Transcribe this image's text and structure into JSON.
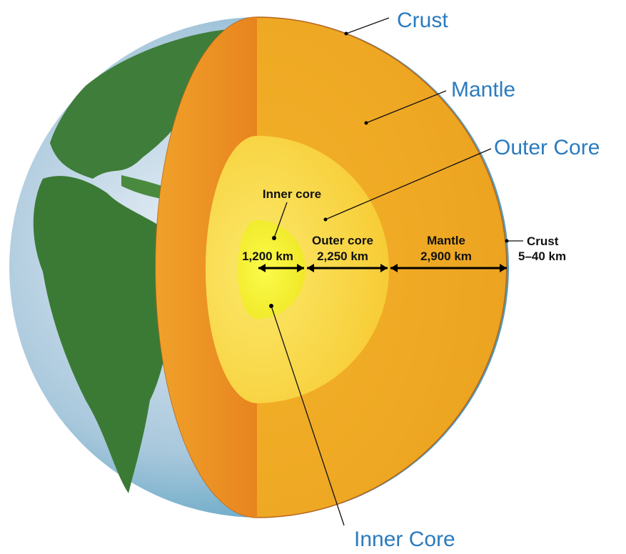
{
  "callouts": [
    {
      "label": "Crust"
    },
    {
      "label": "Mantle"
    },
    {
      "label": "Outer Core"
    },
    {
      "label": "Inner Core"
    }
  ],
  "layers": [
    {
      "name": "Inner core",
      "thickness": "1,200 km"
    },
    {
      "name": "Outer core",
      "thickness": "2,250 km"
    },
    {
      "name": "Mantle",
      "thickness": "2,900 km"
    },
    {
      "name": "Crust",
      "thickness": "5–40 km"
    }
  ]
}
